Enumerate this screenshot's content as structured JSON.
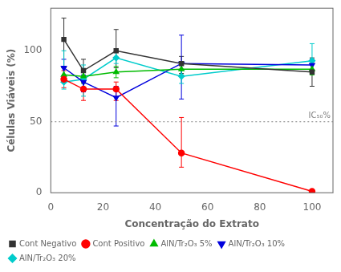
{
  "chart_data": {
    "type": "line",
    "x": [
      5,
      12.5,
      25,
      50,
      100
    ],
    "series": [
      {
        "name": "Cont Negativo",
        "color": "#333333",
        "marker": "square",
        "line_style": "solid",
        "values": [
          108,
          86,
          100,
          91,
          85
        ],
        "yerr_lo": [
          20,
          8,
          12,
          7,
          10
        ],
        "yerr_hi": [
          15,
          8,
          15,
          5,
          10
        ]
      },
      {
        "name": "Cont Positivo",
        "color": "#ff0000",
        "marker": "circle",
        "line_style": "solid",
        "values": [
          80,
          73,
          73,
          28,
          1
        ],
        "yerr_lo": [
          6,
          8,
          8,
          10,
          1
        ],
        "yerr_hi": [
          6,
          5,
          5,
          25,
          1
        ]
      },
      {
        "name": "AlN/Tr₂O₃ 5%",
        "color": "#00bb00",
        "marker": "triangle_up",
        "line_style": "solid",
        "values": [
          83,
          82,
          85,
          87,
          87
        ],
        "yerr_lo": [
          5,
          5,
          4,
          4,
          4
        ],
        "yerr_hi": [
          5,
          5,
          4,
          4,
          4
        ]
      },
      {
        "name": "AlN/Tr₂O₃ 10%",
        "color": "#0000dd",
        "marker": "triangle_down",
        "line_style": "solid",
        "values": [
          88,
          78,
          67,
          91,
          90
        ],
        "yerr_lo": [
          6,
          7,
          20,
          25,
          4
        ],
        "yerr_hi": [
          6,
          5,
          8,
          20,
          4
        ]
      },
      {
        "name": "AlN/Tr₂O₃ 20%",
        "color": "#00cccc",
        "marker": "diamond",
        "line_style": "solid",
        "values": [
          78,
          80,
          95,
          82,
          93
        ],
        "yerr_lo": [
          5,
          12,
          4,
          5,
          8
        ],
        "yerr_hi": [
          22,
          10,
          4,
          5,
          12
        ]
      }
    ],
    "xlabel": "Concentração do Extrato",
    "ylabel": "Células Viáveis (%)",
    "xlim": [
      0,
      108
    ],
    "ylim": [
      0,
      130
    ],
    "xticks": [
      0,
      20,
      40,
      60,
      80,
      100
    ],
    "yticks": [
      0,
      50,
      100
    ],
    "grid": false,
    "legend": "lower left",
    "annotations": [
      {
        "type": "hline",
        "y": 50,
        "text": "IC₅₀%",
        "color": "gray",
        "line_style": "dotted"
      }
    ]
  }
}
